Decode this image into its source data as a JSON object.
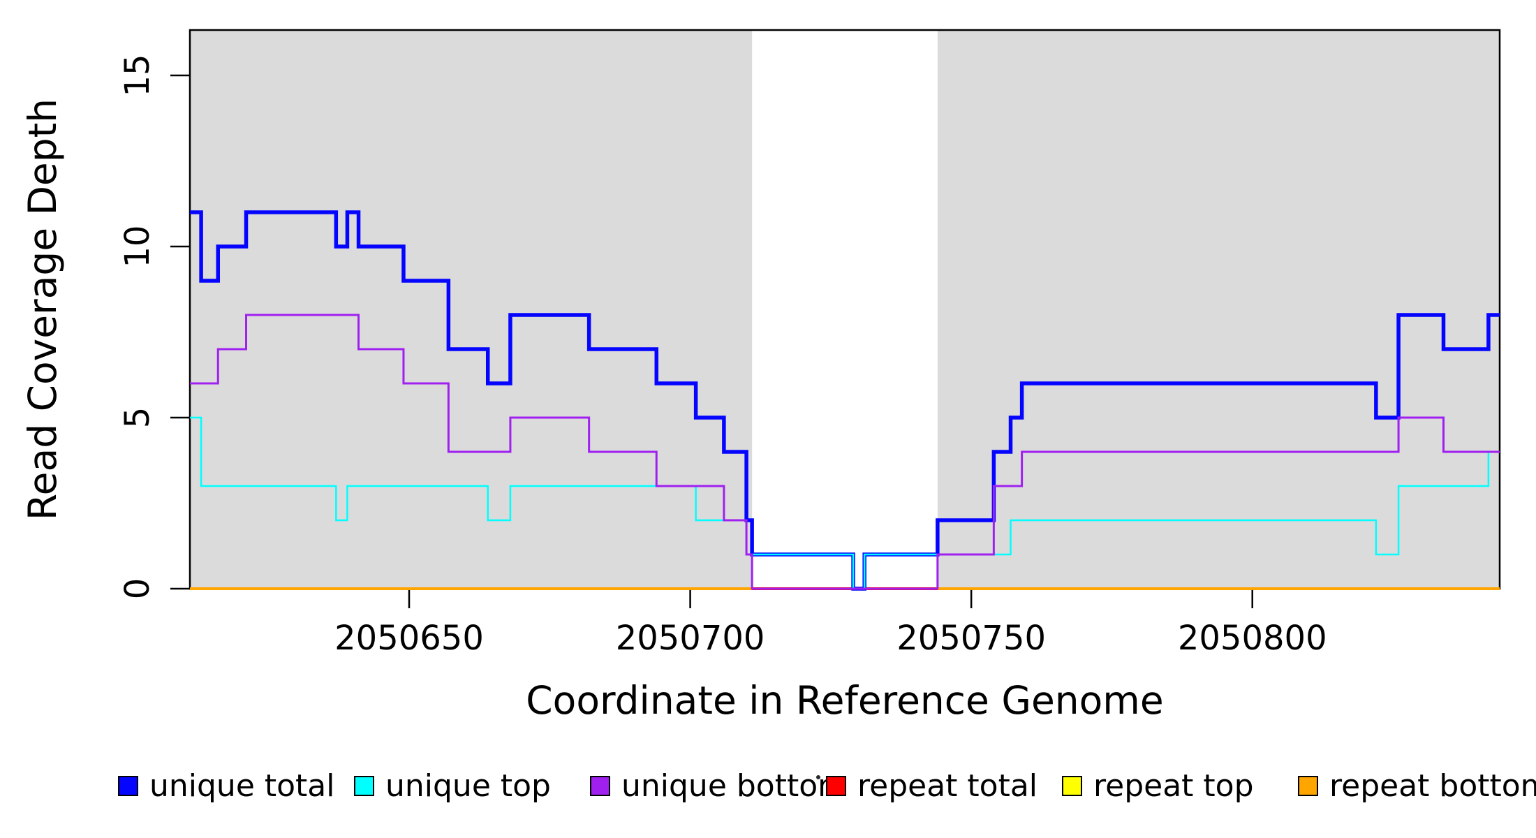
{
  "figure": {
    "background_color": "#ffffff",
    "plot_border_color": "#000000",
    "shaded_region_color": "#DBDBDB"
  },
  "axes": {
    "x": {
      "label": "Coordinate in Reference Genome",
      "range": [
        2050611,
        2050844
      ],
      "ticks": [
        {
          "value": 2050650,
          "label": "2050650"
        },
        {
          "value": 2050700,
          "label": "2050700"
        },
        {
          "value": 2050750,
          "label": "2050750"
        },
        {
          "value": 2050800,
          "label": "2050800"
        }
      ]
    },
    "y": {
      "label": "Read Coverage Depth",
      "range": [
        0,
        16.3
      ],
      "ticks": [
        {
          "value": 0,
          "label": "0"
        },
        {
          "value": 5,
          "label": "5"
        },
        {
          "value": 10,
          "label": "10"
        },
        {
          "value": 15,
          "label": "15"
        }
      ]
    }
  },
  "shaded_regions": {
    "color": "#DBDBDB",
    "intervals": [
      [
        2050611,
        2050711
      ],
      [
        2050744,
        2050844
      ]
    ]
  },
  "legend": {
    "items": [
      {
        "label": "unique total",
        "color": "#0505FF"
      },
      {
        "label": "unique top",
        "color": "#00FFFF"
      },
      {
        "label": "unique bottom",
        "color": "#A020F0"
      },
      {
        "label": "repeat total",
        "color": "#FF0000"
      },
      {
        "label": "repeat top",
        "color": "#FFFF00"
      },
      {
        "label": "repeat bottom",
        "color": "#FFA500"
      }
    ]
  },
  "chart_data": {
    "type": "line",
    "subtype": "step",
    "title": "",
    "xlabel": "Coordinate in Reference Genome",
    "ylabel": "Read Coverage Depth",
    "xlim": [
      2050611,
      2050844
    ],
    "ylim": [
      0,
      16.3
    ],
    "grid": false,
    "legend_position": "bottom",
    "x_breakpoints": [
      2050611,
      2050613,
      2050616,
      2050621,
      2050637,
      2050639,
      2050641,
      2050649,
      2050657,
      2050664,
      2050668,
      2050682,
      2050694,
      2050701,
      2050706,
      2050710,
      2050711,
      2050729,
      2050731,
      2050744,
      2050754,
      2050757,
      2050759,
      2050822,
      2050826,
      2050834,
      2050842,
      2050844
    ],
    "series": [
      {
        "name": "unique total",
        "color": "#0505FF",
        "width": 5.5,
        "values": [
          11,
          9,
          10,
          11,
          10,
          11,
          10,
          9,
          7,
          6,
          8,
          7,
          6,
          5,
          4,
          2,
          1,
          0,
          1,
          2,
          4,
          5,
          6,
          5,
          8,
          7,
          8
        ]
      },
      {
        "name": "unique top",
        "color": "#00FFFF",
        "width": 2.5,
        "values": [
          5,
          3,
          3,
          3,
          2,
          3,
          3,
          3,
          3,
          2,
          3,
          3,
          3,
          2,
          2,
          1,
          1,
          0,
          1,
          1,
          1,
          2,
          2,
          1,
          3,
          3,
          4
        ]
      },
      {
        "name": "unique bottom",
        "color": "#A020F0",
        "width": 3,
        "values": [
          6,
          6,
          7,
          8,
          8,
          8,
          7,
          6,
          4,
          4,
          5,
          4,
          3,
          3,
          2,
          1,
          0,
          0,
          0,
          1,
          3,
          3,
          4,
          4,
          5,
          4,
          4
        ]
      },
      {
        "name": "repeat total",
        "color": "#FF0000",
        "width": 4,
        "constant": 0,
        "spans": "full"
      },
      {
        "name": "repeat top",
        "color": "#FFFF00",
        "width": 3,
        "constant": 0,
        "spans": "full"
      },
      {
        "name": "repeat bottom",
        "color": "#FFA500",
        "width": 4,
        "constant": 0,
        "spans": "shaded"
      }
    ]
  },
  "artifacts": {
    "stray_mark": {
      "present": true
    }
  }
}
